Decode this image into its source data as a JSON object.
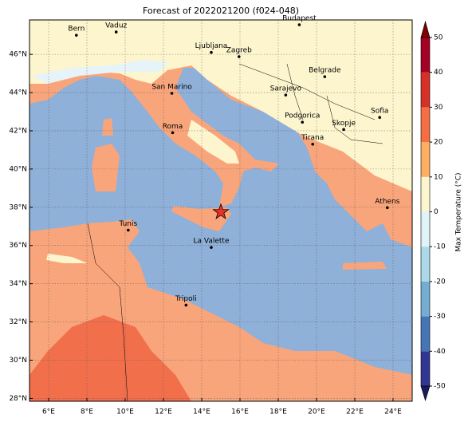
{
  "chart_data": {
    "type": "map",
    "title": "Forecast of 2022021200 (f024-048)",
    "xlim": [
      5,
      25
    ],
    "ylim": [
      27.85,
      47.8
    ],
    "xticks": [
      {
        "value": 6,
        "label": "6°E"
      },
      {
        "value": 8,
        "label": "8°E"
      },
      {
        "value": 10,
        "label": "10°E"
      },
      {
        "value": 12,
        "label": "12°E"
      },
      {
        "value": 14,
        "label": "14°E"
      },
      {
        "value": 16,
        "label": "16°E"
      },
      {
        "value": 18,
        "label": "18°E"
      },
      {
        "value": 20,
        "label": "20°E"
      },
      {
        "value": 22,
        "label": "22°E"
      },
      {
        "value": 24,
        "label": "24°E"
      }
    ],
    "yticks": [
      {
        "value": 28,
        "label": "28°N"
      },
      {
        "value": 30,
        "label": "30°N"
      },
      {
        "value": 32,
        "label": "32°N"
      },
      {
        "value": 34,
        "label": "34°N"
      },
      {
        "value": 36,
        "label": "36°N"
      },
      {
        "value": 38,
        "label": "38°N"
      },
      {
        "value": 40,
        "label": "40°N"
      },
      {
        "value": 42,
        "label": "42°N"
      },
      {
        "value": 44,
        "label": "44°N"
      },
      {
        "value": 46,
        "label": "46°N"
      }
    ],
    "grid": true,
    "cities": [
      {
        "name": "Bern",
        "lon": 7.45,
        "lat": 47.0
      },
      {
        "name": "Vaduz",
        "lon": 9.53,
        "lat": 47.17
      },
      {
        "name": "Budapest",
        "lon": 19.1,
        "lat": 47.55
      },
      {
        "name": "Ljubljana",
        "lon": 14.5,
        "lat": 46.1
      },
      {
        "name": "Zagreb",
        "lon": 15.95,
        "lat": 45.88
      },
      {
        "name": "Belgrade",
        "lon": 20.43,
        "lat": 44.83
      },
      {
        "name": "San Marino",
        "lon": 12.44,
        "lat": 43.96
      },
      {
        "name": "Sarajevo",
        "lon": 18.39,
        "lat": 43.87
      },
      {
        "name": "Sofia",
        "lon": 23.3,
        "lat": 42.7
      },
      {
        "name": "Podgorica",
        "lon": 19.26,
        "lat": 42.45
      },
      {
        "name": "Skopje",
        "lon": 21.42,
        "lat": 42.07
      },
      {
        "name": "Roma",
        "lon": 12.48,
        "lat": 41.9
      },
      {
        "name": "Tirana",
        "lon": 19.8,
        "lat": 41.3
      },
      {
        "name": "Athens",
        "lon": 23.7,
        "lat": 37.98
      },
      {
        "name": "Tunis",
        "lon": 10.16,
        "lat": 36.8
      },
      {
        "name": "La Valette",
        "lon": 14.5,
        "lat": 35.9
      },
      {
        "name": "Tripoli",
        "lon": 13.18,
        "lat": 32.88
      }
    ],
    "marker": {
      "lon": 15.0,
      "lat": 37.75,
      "color": "#e8312a"
    },
    "colorbar": {
      "label": "Max Temperature (°C)",
      "lim": [
        -50,
        50
      ],
      "ticks": [
        -50,
        -40,
        -30,
        -20,
        -10,
        0,
        10,
        20,
        30,
        40,
        50
      ],
      "colors": [
        "#313695",
        "#4575b4",
        "#74add1",
        "#abd9e9",
        "#e0f3f8",
        "#fdf5cd",
        "#fdae61",
        "#f46d43",
        "#d73027",
        "#a50026"
      ],
      "extend_colors": [
        "#1a1a5e",
        "#7f0000"
      ]
    }
  }
}
